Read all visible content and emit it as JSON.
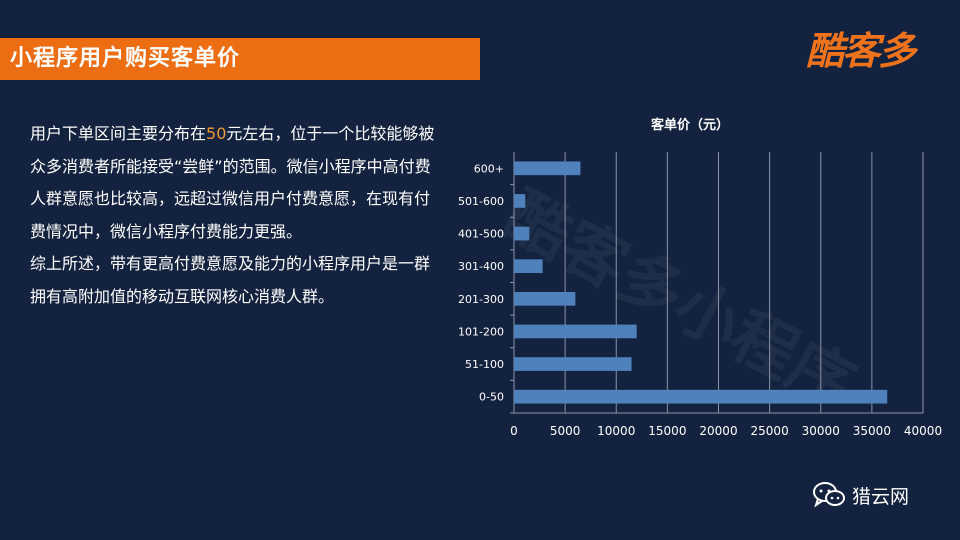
{
  "header": {
    "title": "小程序用户购买客单价",
    "logo_text": "酷客多"
  },
  "body": {
    "para1_before": "用户下单区间主要分布在",
    "para1_highlight": "50",
    "para1_after": "元左右，位于一个比较能够被众多消费者所能接受“尝鲜”的范围。微信小程序中高付费人群意愿也比较高，远超过微信用户付费意愿，在现有付费情况中，微信小程序付费能力更强。",
    "para2": "综上所述，带有更高付费意愿及能力的小程序用户是一群拥有高附加值的移动互联网核心消费人群。",
    "highlight_color": "#f29a35"
  },
  "chart_data": {
    "type": "bar",
    "orientation": "horizontal",
    "title": "客单价（元）",
    "categories": [
      "0-50",
      "51-100",
      "101-200",
      "201-300",
      "301-400",
      "401-500",
      "501-600",
      "600+"
    ],
    "values": [
      36500,
      11500,
      12000,
      6000,
      2800,
      1500,
      1100,
      6500
    ],
    "xlim": [
      0,
      40000
    ],
    "xticks": [
      0,
      5000,
      10000,
      15000,
      20000,
      25000,
      30000,
      35000,
      40000
    ],
    "grid": true,
    "bar_color": "#4f81bd"
  },
  "footer": {
    "label": "猎云网",
    "icon": "wechat-icon"
  },
  "watermark": "酷客多小程序"
}
